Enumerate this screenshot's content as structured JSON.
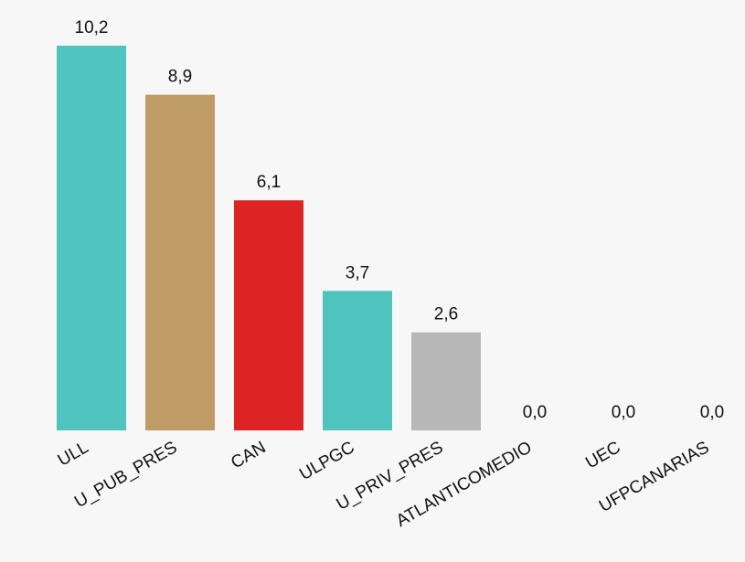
{
  "chart_data": {
    "type": "bar",
    "categories": [
      "ULL",
      "U_PUB_PRES",
      "CAN",
      "ULPGC",
      "U_PRIV_PRES",
      "ATLANTICOMEDIO",
      "UEC",
      "UFPCANARIAS"
    ],
    "values": [
      10.2,
      8.9,
      6.1,
      3.7,
      2.6,
      0.0,
      0.0,
      0.0
    ],
    "value_labels": [
      "10,2",
      "8,9",
      "6,1",
      "3,7",
      "2,6",
      "0,0",
      "0,0",
      "0,0"
    ],
    "colors": [
      "#4fc4bf",
      "#bf9c66",
      "#dc2424",
      "#4fc4bf",
      "#b8b8b8",
      "#b8b8b8",
      "#b8b8b8",
      "#b8b8b8"
    ],
    "ylim": [
      0,
      10.2
    ],
    "grid": false,
    "legend": "none",
    "title": "",
    "xlabel": "",
    "ylabel": ""
  }
}
